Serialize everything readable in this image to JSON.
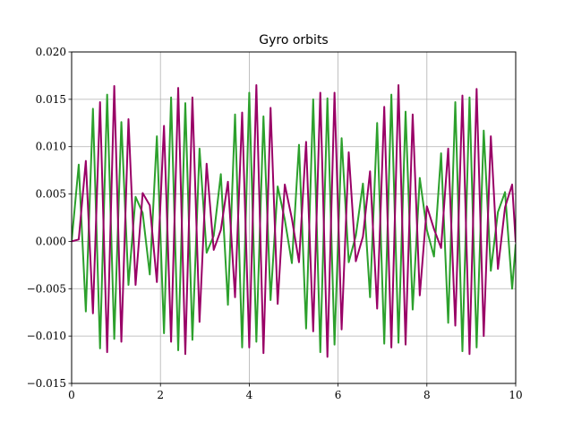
{
  "chart_data": {
    "type": "line",
    "title": "Gyro orbits",
    "xlabel": "",
    "ylabel": "",
    "xlim": [
      0,
      10
    ],
    "ylim": [
      -0.015,
      0.02
    ],
    "grid": true,
    "xticks": [
      0,
      2,
      4,
      6,
      8,
      10
    ],
    "xtick_labels": [
      "0",
      "2",
      "4",
      "6",
      "8",
      "10"
    ],
    "yticks": [
      -0.015,
      -0.01,
      -0.005,
      0.0,
      0.005,
      0.01,
      0.015,
      0.02
    ],
    "ytick_labels": [
      "−0.015",
      "−0.010",
      "−0.005",
      "0.000",
      "0.005",
      "0.010",
      "0.015",
      "0.020"
    ],
    "x": [
      0.0,
      0.16,
      0.32,
      0.48,
      0.64,
      0.8,
      0.96,
      1.12,
      1.28,
      1.44,
      1.6,
      1.76,
      1.92,
      2.08,
      2.24,
      2.4,
      2.56,
      2.72,
      2.88,
      3.04,
      3.2,
      3.36,
      3.52,
      3.68,
      3.84,
      4.0,
      4.16,
      4.32,
      4.48,
      4.64,
      4.8,
      4.96,
      5.12,
      5.28,
      5.44,
      5.6,
      5.76,
      5.92,
      6.08,
      6.24,
      6.4,
      6.56,
      6.72,
      6.88,
      7.04,
      7.2,
      7.36,
      7.52,
      7.68,
      7.84,
      8.0,
      8.16,
      8.32,
      8.48,
      8.64,
      8.8,
      8.96,
      9.12,
      9.28,
      9.44,
      9.6,
      9.76,
      9.92,
      10.0
    ],
    "series": [
      {
        "color": "#2ca02c",
        "values": [
          0.0,
          0.0081,
          -0.0074,
          0.014,
          -0.0113,
          0.0155,
          -0.0103,
          0.0126,
          -0.0046,
          0.0047,
          0.003,
          -0.0035,
          0.0111,
          -0.0097,
          0.0152,
          -0.0115,
          0.0146,
          -0.0104,
          0.0098,
          -0.0012,
          0.0006,
          0.0071,
          -0.0067,
          0.0134,
          -0.0112,
          0.0157,
          -0.0106,
          0.0132,
          -0.0062,
          0.0058,
          0.0023,
          -0.0023,
          0.0102,
          -0.0092,
          0.015,
          -0.0117,
          0.0151,
          -0.0109,
          0.0109,
          -0.0022,
          0.0006,
          0.0061,
          -0.0059,
          0.0125,
          -0.0108,
          0.0155,
          -0.0107,
          0.0137,
          -0.0072,
          0.0067,
          0.0012,
          -0.0016,
          0.0093,
          -0.0086,
          0.0147,
          -0.0116,
          0.0152,
          -0.0112,
          0.0117,
          -0.0031,
          0.0031,
          0.0052,
          -0.005,
          -0.0003
        ]
      },
      {
        "color": "#990066",
        "values": [
          0.0,
          0.0002,
          0.0085,
          -0.0076,
          0.0147,
          -0.0117,
          0.0164,
          -0.0106,
          0.0129,
          -0.0046,
          0.0051,
          0.0038,
          -0.0043,
          0.0122,
          -0.0106,
          0.0162,
          -0.0119,
          0.0152,
          -0.0085,
          0.0082,
          -0.0009,
          0.0012,
          0.0063,
          -0.0059,
          0.0136,
          -0.0112,
          0.0165,
          -0.0118,
          0.0141,
          -0.0066,
          0.006,
          0.0024,
          -0.0022,
          0.0105,
          -0.0095,
          0.0157,
          -0.0122,
          0.0157,
          -0.0093,
          0.0094,
          -0.0021,
          0.0005,
          0.0074,
          -0.0071,
          0.0142,
          -0.0112,
          0.0165,
          -0.0109,
          0.0134,
          -0.0057,
          0.0037,
          0.0013,
          -0.0007,
          0.0098,
          -0.0089,
          0.0154,
          -0.0119,
          0.0161,
          -0.01,
          0.0111,
          -0.0029,
          0.0036,
          0.006,
          -0.0001
        ]
      }
    ]
  }
}
